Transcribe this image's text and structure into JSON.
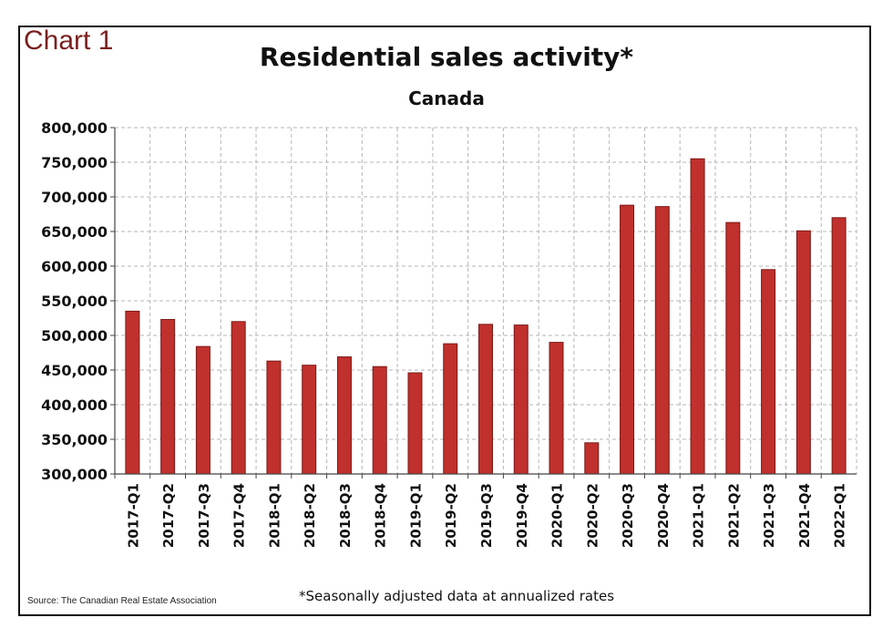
{
  "chart_label": "Chart 1",
  "footer": {
    "source": "Source: The Canadian Real Estate Association",
    "footnote": "*Seasonally adjusted data at annualized rates"
  },
  "colors": {
    "bar": "#c0302c",
    "bar_edge": "#7a1a17",
    "grid": "#b5b5b5"
  },
  "chart_data": {
    "type": "bar",
    "title": "Residential sales activity*",
    "subtitle": "Canada",
    "xlabel": "",
    "ylabel": "",
    "ylim": [
      300000,
      800000
    ],
    "yticks": [
      300000,
      350000,
      400000,
      450000,
      500000,
      550000,
      600000,
      650000,
      700000,
      750000,
      800000
    ],
    "ytick_labels": [
      "300,000",
      "350,000",
      "400,000",
      "450,000",
      "500,000",
      "550,000",
      "600,000",
      "650,000",
      "700,000",
      "750,000",
      "800,000"
    ],
    "grid": true,
    "categories": [
      "2017-Q1",
      "2017-Q2",
      "2017-Q3",
      "2017-Q4",
      "2018-Q1",
      "2018-Q2",
      "2018-Q3",
      "2018-Q4",
      "2019-Q1",
      "2019-Q2",
      "2019-Q3",
      "2019-Q4",
      "2020-Q1",
      "2020-Q2",
      "2020-Q3",
      "2020-Q4",
      "2021-Q1",
      "2021-Q2",
      "2021-Q3",
      "2021-Q4",
      "2022-Q1"
    ],
    "values": [
      535000,
      523000,
      484000,
      520000,
      463000,
      457000,
      469000,
      455000,
      446000,
      488000,
      516000,
      515000,
      490000,
      345000,
      688000,
      686000,
      755000,
      663000,
      595000,
      651000,
      670000
    ]
  }
}
